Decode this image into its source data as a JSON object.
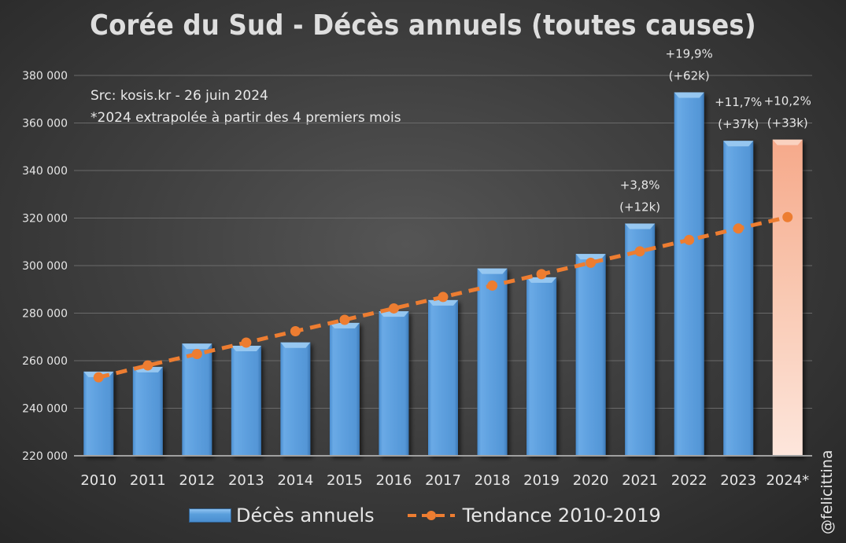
{
  "chart_data": {
    "type": "bar",
    "title": "Corée du Sud - Décès annuels (toutes causes)",
    "notes": [
      "Src: kosis.kr - 26 juin 2024",
      "*2024 extrapolée à partir des 4 premiers mois"
    ],
    "xlabel": "",
    "ylabel": "",
    "ylim": [
      220000,
      380000
    ],
    "yticks": [
      220000,
      240000,
      260000,
      280000,
      300000,
      320000,
      340000,
      360000,
      380000
    ],
    "ytick_labels": [
      "220 000",
      "240 000",
      "260 000",
      "280 000",
      "300 000",
      "320 000",
      "340 000",
      "360 000",
      "380 000"
    ],
    "grid": true,
    "categories": [
      "2010",
      "2011",
      "2012",
      "2013",
      "2014",
      "2015",
      "2016",
      "2017",
      "2018",
      "2019",
      "2020",
      "2021",
      "2022",
      "2023",
      "2024*"
    ],
    "series": [
      {
        "name": "Décès annuels",
        "type": "bar",
        "color": "#5b9fdd",
        "highlight_color": "#f7b79a",
        "highlight_index": 14,
        "values": [
          255400,
          257400,
          267200,
          266300,
          267700,
          275900,
          280800,
          285500,
          298800,
          295100,
          304900,
          317700,
          372900,
          352500,
          353000
        ]
      },
      {
        "name": "Tendance 2010-2019",
        "type": "line",
        "style": "dashed",
        "color": "#ed7d31",
        "values": [
          253000,
          258000,
          262800,
          267600,
          272400,
          277200,
          282000,
          286800,
          291600,
          296400,
          301200,
          306000,
          310800,
          315600,
          320400
        ]
      }
    ],
    "annotations": [
      {
        "category": "2021",
        "lines": [
          "+3,8%",
          "(+12k)"
        ]
      },
      {
        "category": "2022",
        "lines": [
          "+19,9%",
          "(+62k)"
        ]
      },
      {
        "category": "2023",
        "lines": [
          "+11,7%",
          "(+37k)"
        ]
      },
      {
        "category": "2024*",
        "lines": [
          "+10,2%",
          "(+33k)"
        ]
      }
    ],
    "legend": {
      "position": "bottom",
      "entries": [
        "Décès annuels",
        "Tendance 2010-2019"
      ]
    }
  },
  "watermark": "@felicittina"
}
